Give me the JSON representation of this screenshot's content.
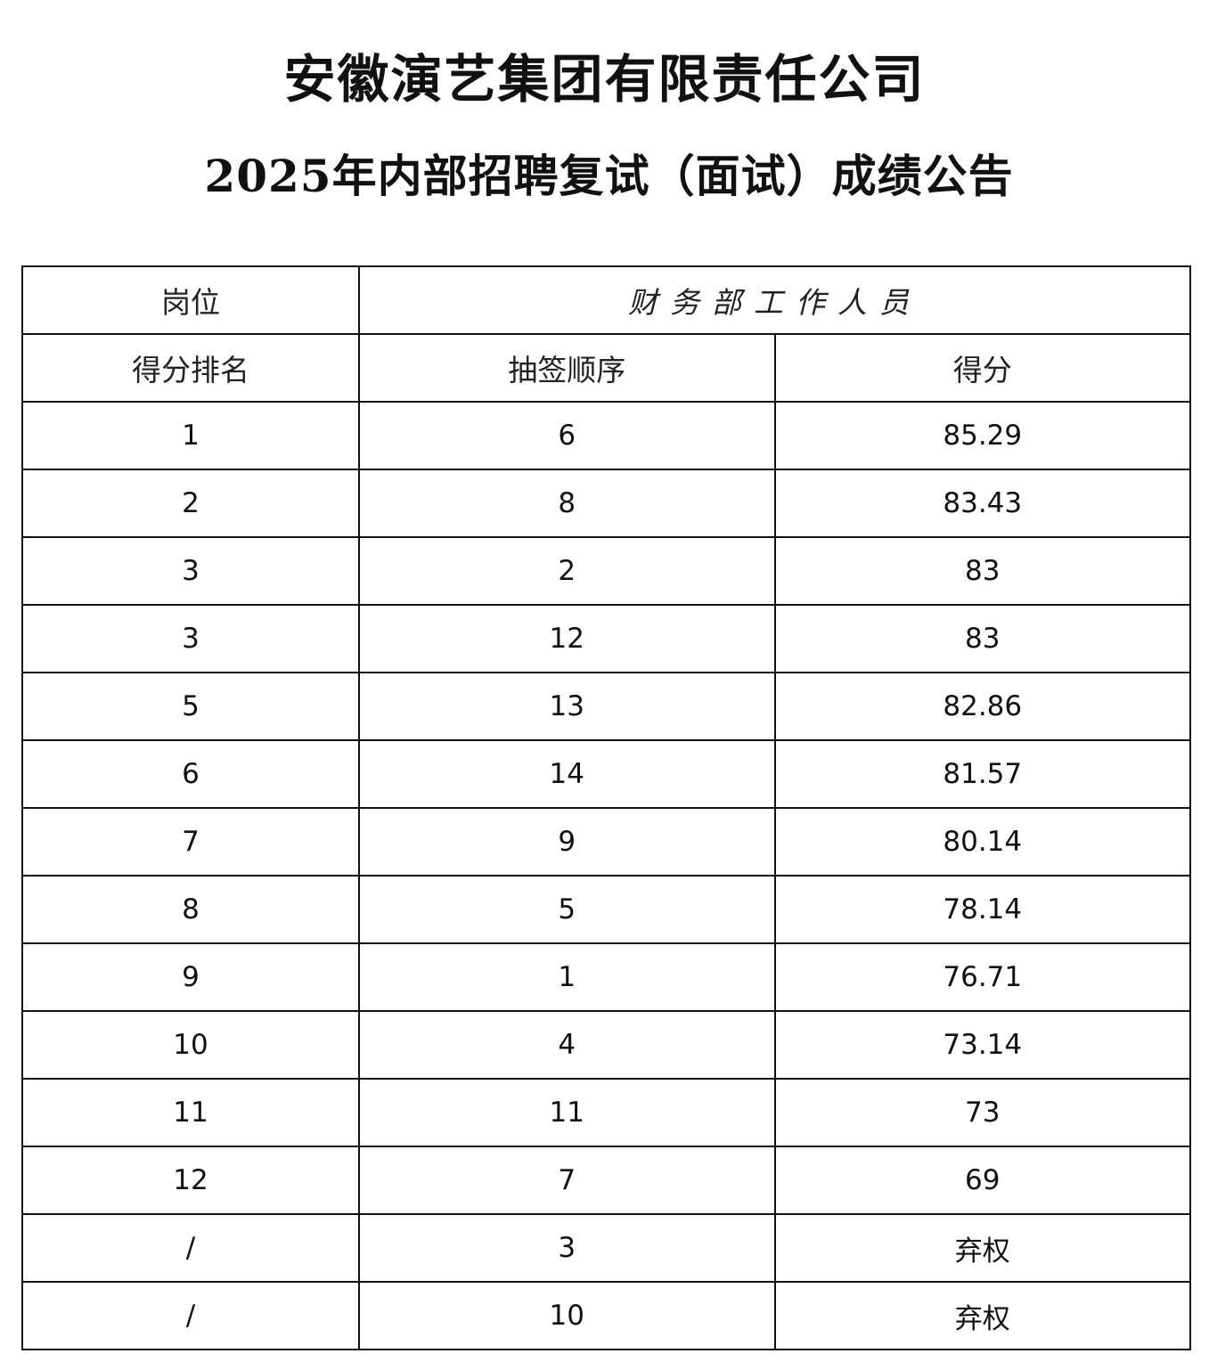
{
  "title": {
    "line1": "安徽演艺集团有限责任公司",
    "line2": "2025年内部招聘复试（面试）成绩公告"
  },
  "table": {
    "position_label": "岗位",
    "position_value": "财务部工作人员",
    "headers": [
      "得分排名",
      "抽签顺序",
      "得分"
    ],
    "rows": [
      [
        "1",
        "6",
        "85.29"
      ],
      [
        "2",
        "8",
        "83.43"
      ],
      [
        "3",
        "2",
        "83"
      ],
      [
        "3",
        "12",
        "83"
      ],
      [
        "5",
        "13",
        "82.86"
      ],
      [
        "6",
        "14",
        "81.57"
      ],
      [
        "7",
        "9",
        "80.14"
      ],
      [
        "8",
        "5",
        "78.14"
      ],
      [
        "9",
        "1",
        "76.71"
      ],
      [
        "10",
        "4",
        "73.14"
      ],
      [
        "11",
        "11",
        "73"
      ],
      [
        "12",
        "7",
        "69"
      ],
      [
        "/",
        "3",
        "弃权"
      ],
      [
        "/",
        "10",
        "弃权"
      ]
    ]
  }
}
